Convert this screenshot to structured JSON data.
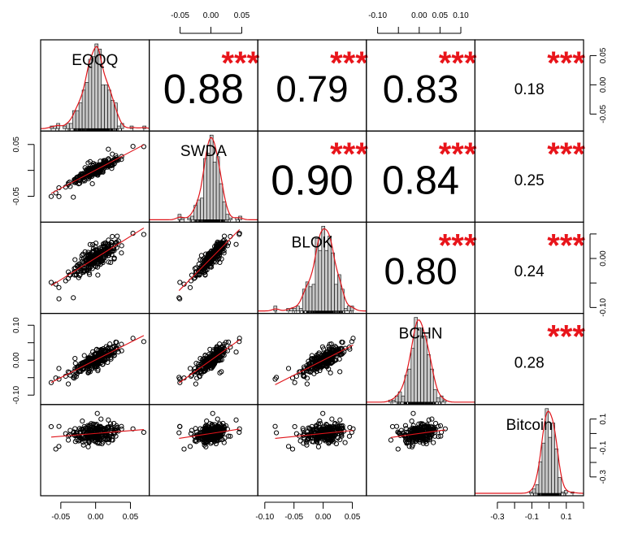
{
  "chart_data": {
    "type": "scatter",
    "subtype": "correlation-matrix",
    "title": "",
    "variables": [
      "EQQQ",
      "SWDA",
      "BLOK",
      "BCHN",
      "Bitcoin"
    ],
    "ranges": {
      "EQQQ": [
        -0.079,
        0.077
      ],
      "SWDA": [
        -0.1,
        0.076
      ],
      "BLOK": [
        -0.112,
        0.074
      ],
      "BCHN": [
        -0.127,
        0.134
      ],
      "Bitcoin": [
        -0.43,
        0.2
      ]
    },
    "correlations": [
      {
        "row": "EQQQ",
        "col": "SWDA",
        "value": 0.88,
        "label": "0.88",
        "stars": "***"
      },
      {
        "row": "EQQQ",
        "col": "BLOK",
        "value": 0.79,
        "label": "0.79",
        "stars": "***"
      },
      {
        "row": "EQQQ",
        "col": "BCHN",
        "value": 0.83,
        "label": "0.83",
        "stars": "***"
      },
      {
        "row": "EQQQ",
        "col": "Bitcoin",
        "value": 0.18,
        "label": "0.18",
        "stars": "***"
      },
      {
        "row": "SWDA",
        "col": "BLOK",
        "value": 0.9,
        "label": "0.90",
        "stars": "***"
      },
      {
        "row": "SWDA",
        "col": "BCHN",
        "value": 0.84,
        "label": "0.84",
        "stars": "***"
      },
      {
        "row": "SWDA",
        "col": "Bitcoin",
        "value": 0.25,
        "label": "0.25",
        "stars": "***"
      },
      {
        "row": "BLOK",
        "col": "BCHN",
        "value": 0.8,
        "label": "0.80",
        "stars": "***"
      },
      {
        "row": "BLOK",
        "col": "Bitcoin",
        "value": 0.24,
        "label": "0.24",
        "stars": "***"
      },
      {
        "row": "BCHN",
        "col": "Bitcoin",
        "value": 0.28,
        "label": "0.28",
        "stars": "***"
      }
    ],
    "axes": {
      "top": [
        {
          "col": 1,
          "ticks": [
            -0.05,
            0,
            0.05
          ],
          "labels": [
            "-0.05",
            "0.00",
            "0.05"
          ]
        },
        {
          "col": 3,
          "ticks": [
            -0.1,
            -0.05,
            0,
            0.05,
            0.1
          ],
          "labels": [
            "-0.10",
            "",
            "0.00",
            "0.05",
            "0.10"
          ]
        }
      ],
      "bottom": [
        {
          "col": 0,
          "ticks": [
            -0.05,
            0,
            0.05
          ],
          "labels": [
            "-0.05",
            "0.00",
            "0.05"
          ]
        },
        {
          "col": 2,
          "ticks": [
            -0.1,
            -0.05,
            0,
            0.05
          ],
          "labels": [
            "-0.10",
            "-0.05",
            "0.00",
            "0.05"
          ]
        },
        {
          "col": 4,
          "ticks": [
            -0.3,
            -0.2,
            -0.1,
            0,
            0.1,
            0.2
          ],
          "labels": [
            "-0.3",
            "",
            "-0.1",
            "",
            "0.1",
            ""
          ]
        }
      ],
      "left": [
        {
          "row": 1,
          "ticks": [
            0.05,
            0,
            -0.05
          ],
          "labels": [
            "0.05",
            "",
            "-0.05"
          ]
        },
        {
          "row": 3,
          "ticks": [
            0.1,
            0.05,
            0,
            -0.05,
            -0.1
          ],
          "labels": [
            "0.10",
            "",
            "0.00",
            "",
            "-0.10"
          ]
        }
      ],
      "right": [
        {
          "row": 0,
          "ticks": [
            0.05,
            0,
            -0.05
          ],
          "labels": [
            "0.05",
            "0.00",
            "-0.05"
          ]
        },
        {
          "row": 2,
          "ticks": [
            0.05,
            0,
            -0.05,
            -0.1
          ],
          "labels": [
            "",
            "0.00",
            "",
            "-0.10"
          ]
        },
        {
          "row": 4,
          "ticks": [
            0.1,
            0,
            -0.1,
            -0.2,
            -0.3
          ],
          "labels": [
            "0.1",
            "",
            "-0.1",
            "",
            "-0.3"
          ]
        }
      ]
    },
    "colors": {
      "fit": "#e0141a",
      "stars": "#e8141a",
      "bars": "#c8c8c8"
    }
  }
}
